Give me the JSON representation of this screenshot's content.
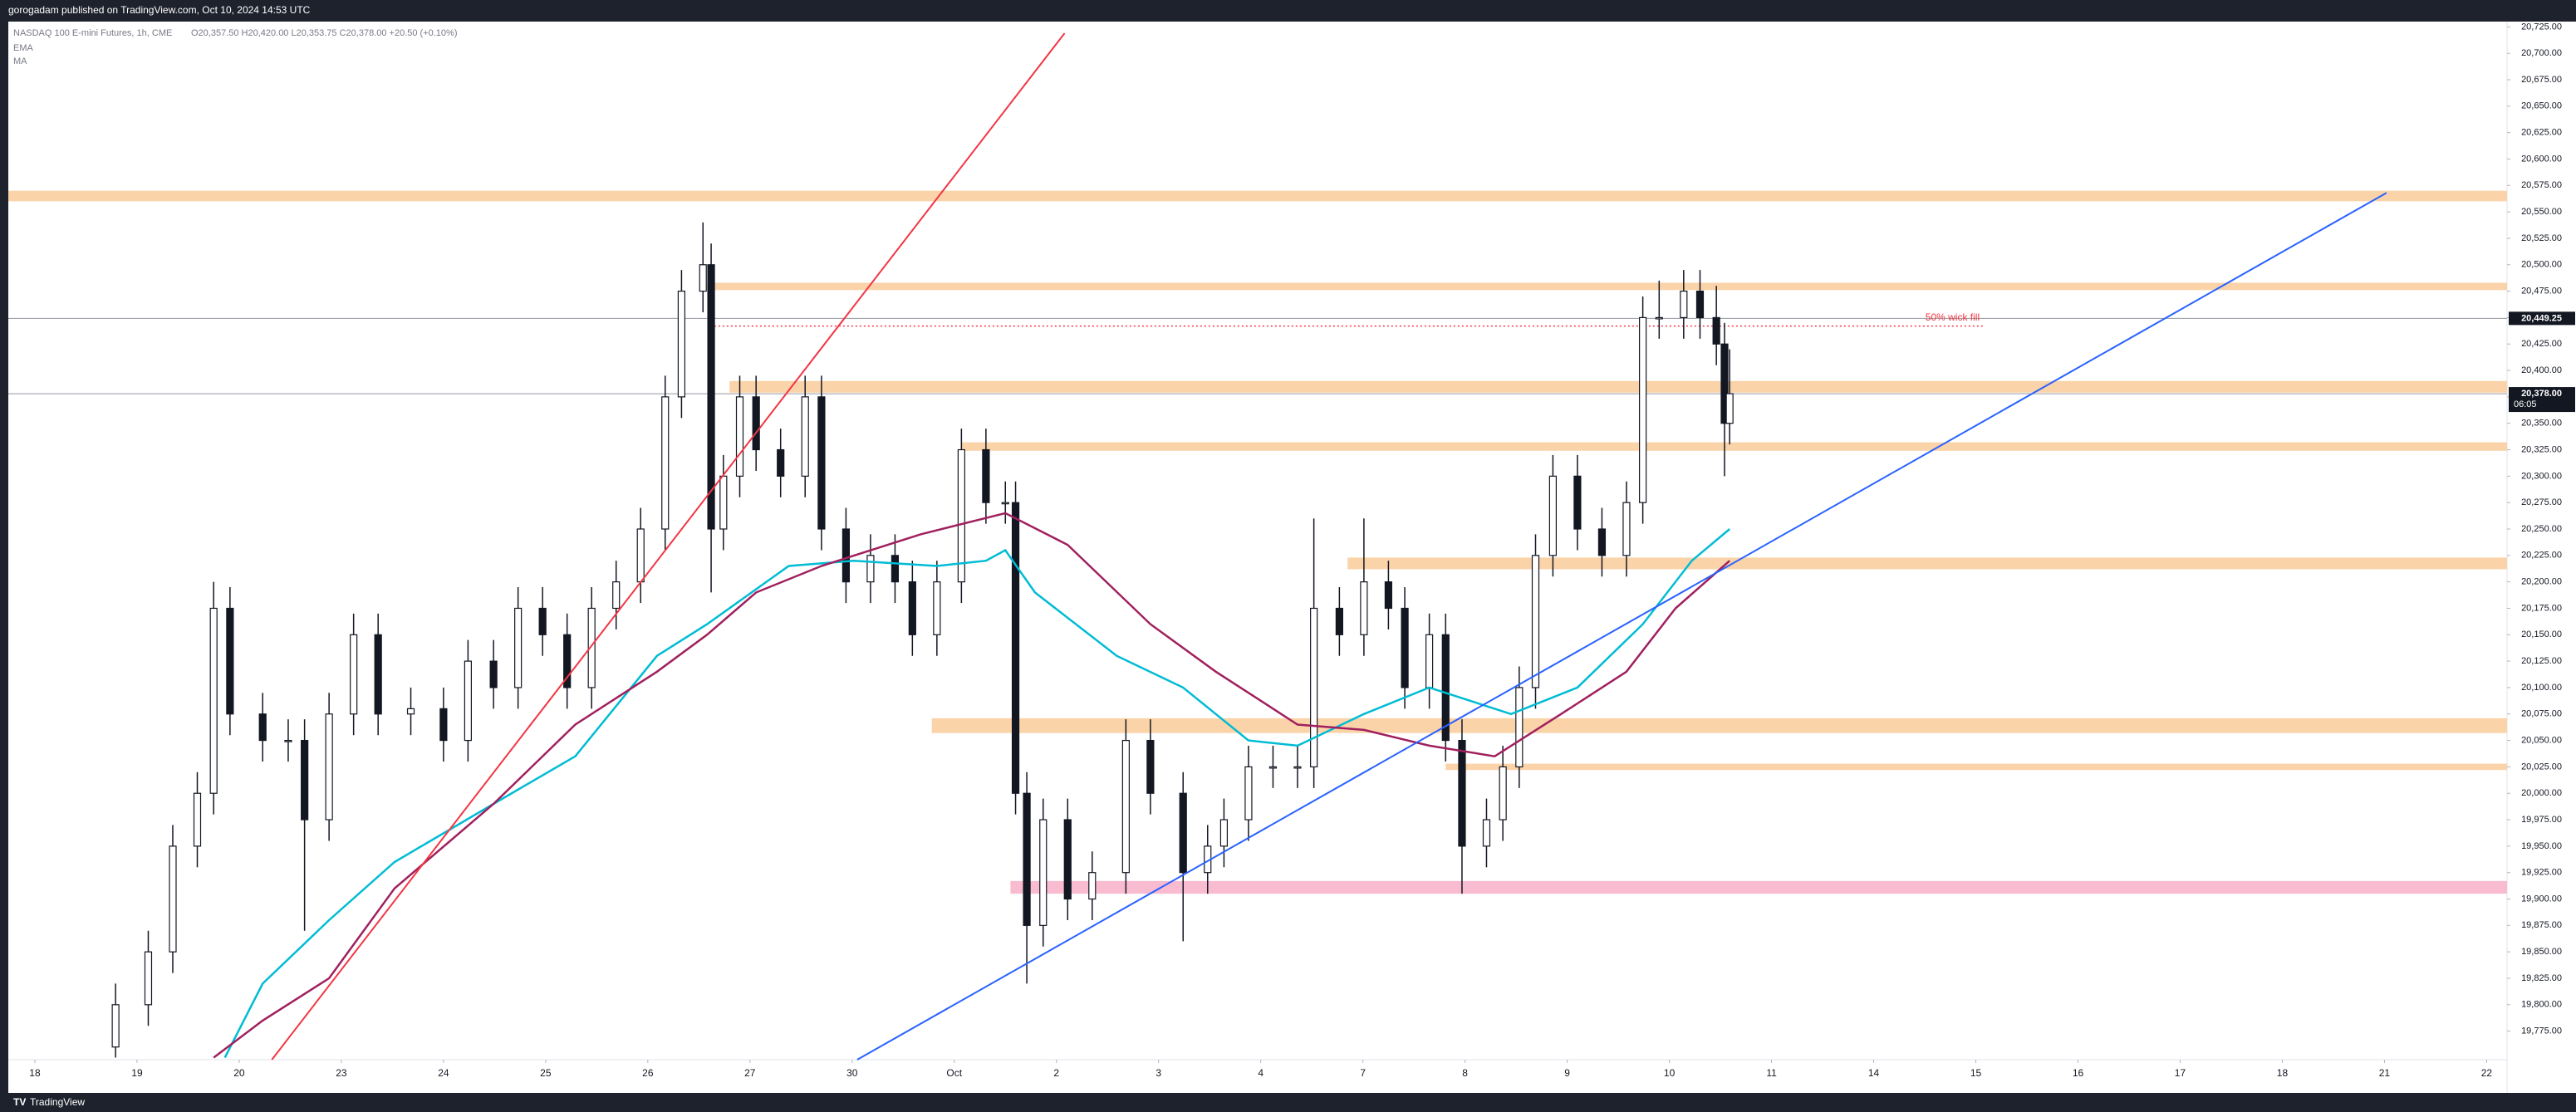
{
  "header": "gorogadam published on TradingView.com, Oct 10, 2024 14:53 UTC",
  "footer": "TradingView",
  "chart_data": {
    "type": "candlestick",
    "title": "NASDAQ 100 E-mini Futures, 1h, CME",
    "ohlc_summary": "O20,357.50 H20,420.00 L20,353.75 C20,378.00 +20.50 (+0.10%)",
    "up_color": "#ffffff",
    "down_color": "#131722",
    "x": [
      0.79,
      1.11,
      1.35,
      1.59,
      1.75,
      1.91,
      2.23,
      2.48,
      2.64,
      2.88,
      3.12,
      3.36,
      3.68,
      4.0,
      4.24,
      4.49,
      4.73,
      4.97,
      5.21,
      5.45,
      5.69,
      5.93,
      6.17,
      6.33,
      6.54,
      6.62,
      6.74,
      6.9,
      7.06,
      7.3,
      7.54,
      7.7,
      7.94,
      8.18,
      8.42,
      8.59,
      8.83,
      9.07,
      9.31,
      9.5,
      9.6,
      9.71,
      9.87,
      10.11,
      10.35,
      10.68,
      10.92,
      11.24,
      11.48,
      11.64,
      11.88,
      12.12,
      12.36,
      12.52,
      12.77,
      13.01,
      13.25,
      13.41,
      13.65,
      13.81,
      13.97,
      14.21,
      14.37,
      14.53,
      14.69,
      14.86,
      15.1,
      15.34,
      15.58,
      15.74,
      15.9,
      16.14,
      16.3,
      16.46,
      16.54,
      16.59
    ],
    "open": [
      19760,
      19800,
      19850,
      19950,
      20000,
      20175,
      20075,
      20050,
      20050,
      19975,
      20075,
      20150,
      20075,
      20080,
      20050,
      20125,
      20100,
      20175,
      20150,
      20100,
      20175,
      20200,
      20250,
      20375,
      20475,
      20500,
      20250,
      20300,
      20375,
      20325,
      20300,
      20375,
      20250,
      20200,
      20225,
      20200,
      20150,
      20200,
      20325,
      20275,
      20275,
      20000,
      19875,
      19975,
      19900,
      19925,
      20050,
      20000,
      19925,
      19950,
      19975,
      20025,
      20025,
      20025,
      20175,
      20150,
      20200,
      20175,
      20100,
      20150,
      20050,
      19950,
      19975,
      20025,
      20100,
      20225,
      20300,
      20250,
      20225,
      20275,
      20450,
      20450,
      20475,
      20450,
      20425,
      20350
    ],
    "high": [
      19820,
      19870,
      19970,
      20020,
      20200,
      20195,
      20095,
      20070,
      20070,
      20095,
      20170,
      20170,
      20100,
      20100,
      20145,
      20145,
      20195,
      20195,
      20170,
      20195,
      20220,
      20270,
      20395,
      20495,
      20540,
      20520,
      20320,
      20395,
      20395,
      20345,
      20395,
      20395,
      20270,
      20245,
      20245,
      20220,
      20220,
      20345,
      20345,
      20295,
      20295,
      20020,
      19995,
      19995,
      19945,
      20070,
      20070,
      20020,
      19970,
      19995,
      20045,
      20045,
      20045,
      20260,
      20195,
      20260,
      20220,
      20195,
      20170,
      20170,
      20070,
      19995,
      20045,
      20120,
      20245,
      20320,
      20320,
      20270,
      20295,
      20470,
      20485,
      20495,
      20495,
      20480,
      20445,
      20420
    ],
    "low": [
      19750,
      19780,
      19830,
      19930,
      19980,
      20055,
      20030,
      20030,
      19870,
      19955,
      20055,
      20055,
      20055,
      20030,
      20030,
      20080,
      20080,
      20130,
      20080,
      20080,
      20155,
      20180,
      20230,
      20355,
      20455,
      20190,
      20230,
      20280,
      20305,
      20280,
      20280,
      20230,
      20180,
      20180,
      20180,
      20130,
      20130,
      20180,
      20255,
      20255,
      19980,
      19820,
      19855,
      19880,
      19880,
      19905,
      19980,
      19860,
      19905,
      19930,
      19955,
      20005,
      20005,
      20005,
      20130,
      20130,
      20155,
      20080,
      20080,
      20030,
      19905,
      19930,
      19955,
      20005,
      20080,
      20205,
      20230,
      20205,
      20205,
      20255,
      20430,
      20430,
      20430,
      20405,
      20300,
      20330
    ],
    "close": [
      19800,
      19850,
      19950,
      20000,
      20175,
      20075,
      20050,
      20050,
      19975,
      20075,
      20150,
      20075,
      20080,
      20050,
      20125,
      20100,
      20175,
      20150,
      20100,
      20175,
      20200,
      20250,
      20375,
      20475,
      20500,
      20250,
      20300,
      20375,
      20325,
      20300,
      20375,
      20250,
      20200,
      20225,
      20200,
      20150,
      20200,
      20325,
      20275,
      20275,
      20000,
      19875,
      19975,
      19900,
      19925,
      20050,
      20000,
      19925,
      19950,
      19975,
      20025,
      20025,
      20025,
      20175,
      20150,
      20200,
      20175,
      20100,
      20150,
      20050,
      19950,
      19975,
      20025,
      20100,
      20225,
      20300,
      20250,
      20225,
      20275,
      20450,
      20450,
      20475,
      20450,
      20425,
      20350,
      20378
    ],
    "series": [
      {
        "name": "EMA",
        "color": "#00bcd4",
        "x": [
          1.86,
          2.23,
          2.88,
          3.52,
          4.49,
          5.29,
          6.09,
          6.58,
          7.38,
          8.02,
          8.83,
          9.31,
          9.5,
          9.79,
          10.59,
          11.24,
          11.88,
          12.36,
          13.01,
          13.65,
          14.45,
          15.1,
          15.74,
          16.22,
          16.59
        ],
        "values": [
          19750,
          19820,
          19880,
          19935,
          19990,
          20035,
          20130,
          20160,
          20215,
          20220,
          20215,
          20220,
          20230,
          20190,
          20130,
          20100,
          20050,
          20045,
          20075,
          20100,
          20075,
          20100,
          20160,
          20220,
          20250
        ]
      },
      {
        "name": "MA",
        "color": "#a0205e",
        "x": [
          1.75,
          2.23,
          2.88,
          3.52,
          4.49,
          5.29,
          6.09,
          6.58,
          7.06,
          7.7,
          8.67,
          9.5,
          10.11,
          10.92,
          11.56,
          12.36,
          13.01,
          13.65,
          14.29,
          14.94,
          15.58,
          16.06,
          16.59
        ],
        "values": [
          19750,
          19785,
          19825,
          19910,
          19990,
          20065,
          20115,
          20150,
          20190,
          20215,
          20245,
          20265,
          20235,
          20160,
          20115,
          20065,
          20060,
          20045,
          20035,
          20075,
          20115,
          20175,
          20220
        ]
      }
    ],
    "zones": [
      {
        "range": [
          20560,
          20570
        ],
        "start": -0.26,
        "color": "#fbd3a9"
      },
      {
        "range": [
          20476,
          20483
        ],
        "start": 6.58,
        "color": "#fbd3a9"
      },
      {
        "range": [
          20379,
          20390
        ],
        "start": 6.8,
        "color": "#fbd3a9"
      },
      {
        "range": [
          20324,
          20332
        ],
        "start": 9.07,
        "color": "#fbd3a9"
      },
      {
        "range": [
          20212,
          20223
        ],
        "start": 12.85,
        "color": "#fbd3a9"
      },
      {
        "range": [
          20057,
          20071
        ],
        "start": 8.78,
        "color": "#fbd3a9"
      },
      {
        "range": [
          20022,
          20028
        ],
        "start": 13.81,
        "color": "#fbd3a9"
      },
      {
        "range": [
          19905,
          19917
        ],
        "start": 9.55,
        "color": "#f8bbd0"
      }
    ],
    "trendlines": [
      {
        "x": [
          2.32,
          10.08
        ],
        "y": [
          19748,
          20719
        ],
        "color": "#f23645"
      },
      {
        "x": [
          8.05,
          23.02
        ],
        "y": [
          19748,
          20568
        ],
        "color": "#2962ff"
      }
    ],
    "annotation": {
      "text": "50% wick fill",
      "value": 20442,
      "x": [
        6.61,
        19.07
      ],
      "color": "#f23645"
    },
    "price_lines": [
      {
        "value": 20449.25,
        "label": "20,449.25"
      },
      {
        "value": 20378,
        "label": "20,378.00",
        "countdown": "06:05"
      }
    ],
    "xlim": [
      -0.26,
      24.2
    ],
    "ylim": [
      19748,
      20730
    ],
    "xticks": [
      {
        "value": 0,
        "label": "18"
      },
      {
        "value": 1,
        "label": "19"
      },
      {
        "value": 2,
        "label": "20"
      },
      {
        "value": 3,
        "label": "23"
      },
      {
        "value": 4,
        "label": "24"
      },
      {
        "value": 5,
        "label": "25"
      },
      {
        "value": 6,
        "label": "26"
      },
      {
        "value": 7,
        "label": "27"
      },
      {
        "value": 8,
        "label": "30"
      },
      {
        "value": 9,
        "label": "Oct"
      },
      {
        "value": 10,
        "label": "2"
      },
      {
        "value": 11,
        "label": "3"
      },
      {
        "value": 12,
        "label": "4"
      },
      {
        "value": 13,
        "label": "7"
      },
      {
        "value": 14,
        "label": "8"
      },
      {
        "value": 15,
        "label": "9"
      },
      {
        "value": 16,
        "label": "10"
      },
      {
        "value": 17,
        "label": "11"
      },
      {
        "value": 18,
        "label": "14"
      },
      {
        "value": 19,
        "label": "15"
      },
      {
        "value": 20,
        "label": "16"
      },
      {
        "value": 21,
        "label": "17"
      },
      {
        "value": 22,
        "label": "18"
      },
      {
        "value": 23,
        "label": "21"
      },
      {
        "value": 24,
        "label": "22"
      }
    ],
    "yticks": [
      {
        "value": 19775,
        "label": "19,775.00"
      },
      {
        "value": 19800,
        "label": "19,800.00"
      },
      {
        "value": 19825,
        "label": "19,825.00"
      },
      {
        "value": 19850,
        "label": "19,850.00"
      },
      {
        "value": 19875,
        "label": "19,875.00"
      },
      {
        "value": 19900,
        "label": "19,900.00"
      },
      {
        "value": 19925,
        "label": "19,925.00"
      },
      {
        "value": 19950,
        "label": "19,950.00"
      },
      {
        "value": 19975,
        "label": "19,975.00"
      },
      {
        "value": 20000,
        "label": "20,000.00"
      },
      {
        "value": 20025,
        "label": "20,025.00"
      },
      {
        "value": 20050,
        "label": "20,050.00"
      },
      {
        "value": 20075,
        "label": "20,075.00"
      },
      {
        "value": 20100,
        "label": "20,100.00"
      },
      {
        "value": 20125,
        "label": "20,125.00"
      },
      {
        "value": 20150,
        "label": "20,150.00"
      },
      {
        "value": 20175,
        "label": "20,175.00"
      },
      {
        "value": 20200,
        "label": "20,200.00"
      },
      {
        "value": 20225,
        "label": "20,225.00"
      },
      {
        "value": 20250,
        "label": "20,250.00"
      },
      {
        "value": 20275,
        "label": "20,275.00"
      },
      {
        "value": 20300,
        "label": "20,300.00"
      },
      {
        "value": 20325,
        "label": "20,325.00"
      },
      {
        "value": 20350,
        "label": "20,350.00"
      },
      {
        "value": 20375,
        "label": "20,375.00"
      },
      {
        "value": 20400,
        "label": "20,400.00"
      },
      {
        "value": 20425,
        "label": "20,425.00"
      },
      {
        "value": 20450,
        "label": "20,450.00"
      },
      {
        "value": 20475,
        "label": "20,475.00"
      },
      {
        "value": 20500,
        "label": "20,500.00"
      },
      {
        "value": 20525,
        "label": "20,525.00"
      },
      {
        "value": 20550,
        "label": "20,550.00"
      },
      {
        "value": 20575,
        "label": "20,575.00"
      },
      {
        "value": 20600,
        "label": "20,600.00"
      },
      {
        "value": 20625,
        "label": "20,625.00"
      },
      {
        "value": 20650,
        "label": "20,650.00"
      },
      {
        "value": 20675,
        "label": "20,675.00"
      },
      {
        "value": 20700,
        "label": "20,700.00"
      },
      {
        "value": 20725,
        "label": "20,725.00"
      }
    ]
  }
}
